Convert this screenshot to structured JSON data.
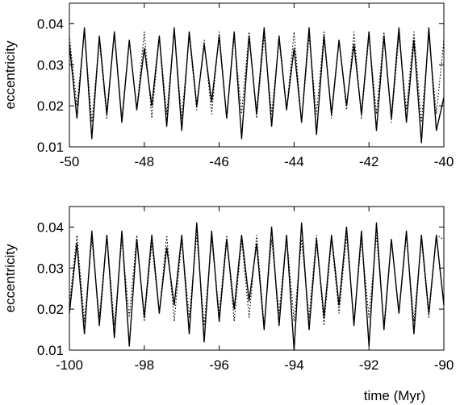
{
  "chart_data": [
    {
      "type": "line",
      "title": "",
      "xlabel": "",
      "ylabel": "eccentricity",
      "xlim": [
        -50,
        -40
      ],
      "ylim": [
        0.01,
        0.045
      ],
      "xticks": [
        "-50",
        "-48",
        "-46",
        "-44",
        "-42",
        "-40"
      ],
      "yticks": [
        "0.01",
        "0.02",
        "0.03",
        "0.04"
      ],
      "grid": false,
      "series": [
        {
          "style": "solid",
          "color": "#000000",
          "x": [
            -50.0,
            -49.8,
            -49.6,
            -49.4,
            -49.2,
            -49.0,
            -48.8,
            -48.6,
            -48.4,
            -48.2,
            -48.0,
            -47.8,
            -47.6,
            -47.4,
            -47.2,
            -47.0,
            -46.8,
            -46.6,
            -46.4,
            -46.2,
            -46.0,
            -45.8,
            -45.6,
            -45.4,
            -45.2,
            -45.0,
            -44.8,
            -44.6,
            -44.4,
            -44.2,
            -44.0,
            -43.8,
            -43.6,
            -43.4,
            -43.2,
            -43.0,
            -42.8,
            -42.6,
            -42.4,
            -42.2,
            -42.0,
            -41.8,
            -41.6,
            -41.4,
            -41.2,
            -41.0,
            -40.8,
            -40.6,
            -40.4,
            -40.2,
            -40.0
          ],
          "y": [
            0.035,
            0.017,
            0.039,
            0.012,
            0.037,
            0.018,
            0.038,
            0.016,
            0.036,
            0.019,
            0.034,
            0.02,
            0.037,
            0.015,
            0.039,
            0.014,
            0.038,
            0.02,
            0.035,
            0.021,
            0.037,
            0.017,
            0.038,
            0.012,
            0.037,
            0.018,
            0.039,
            0.015,
            0.037,
            0.019,
            0.034,
            0.016,
            0.039,
            0.013,
            0.037,
            0.018,
            0.036,
            0.02,
            0.035,
            0.018,
            0.038,
            0.014,
            0.037,
            0.017,
            0.039,
            0.016,
            0.036,
            0.011,
            0.039,
            0.014,
            0.022
          ]
        },
        {
          "style": "dotted",
          "color": "#000000",
          "x": [
            -50.0,
            -49.8,
            -49.6,
            -49.4,
            -49.2,
            -49.0,
            -48.8,
            -48.6,
            -48.4,
            -48.2,
            -48.0,
            -47.8,
            -47.6,
            -47.4,
            -47.2,
            -47.0,
            -46.8,
            -46.6,
            -46.4,
            -46.2,
            -46.0,
            -45.8,
            -45.6,
            -45.4,
            -45.2,
            -45.0,
            -44.8,
            -44.6,
            -44.4,
            -44.2,
            -44.0,
            -43.8,
            -43.6,
            -43.4,
            -43.2,
            -43.0,
            -42.8,
            -42.6,
            -42.4,
            -42.2,
            -42.0,
            -41.8,
            -41.6,
            -41.4,
            -41.2,
            -41.0,
            -40.8,
            -40.6,
            -40.4,
            -40.2,
            -40.0
          ],
          "y": [
            0.037,
            0.02,
            0.038,
            0.016,
            0.036,
            0.017,
            0.038,
            0.017,
            0.036,
            0.019,
            0.038,
            0.017,
            0.037,
            0.018,
            0.038,
            0.017,
            0.037,
            0.019,
            0.036,
            0.018,
            0.038,
            0.017,
            0.037,
            0.018,
            0.038,
            0.017,
            0.037,
            0.018,
            0.036,
            0.019,
            0.038,
            0.016,
            0.037,
            0.018,
            0.038,
            0.017,
            0.036,
            0.019,
            0.038,
            0.017,
            0.037,
            0.018,
            0.038,
            0.016,
            0.037,
            0.019,
            0.038,
            0.016,
            0.037,
            0.018,
            0.036
          ]
        }
      ]
    },
    {
      "type": "line",
      "title": "",
      "xlabel": "time (Myr)",
      "ylabel": "eccentricity",
      "xlim": [
        -100,
        -90
      ],
      "ylim": [
        0.01,
        0.045
      ],
      "xticks": [
        "-100",
        "-98",
        "-96",
        "-94",
        "-92",
        "-90"
      ],
      "yticks": [
        "0.01",
        "0.02",
        "0.03",
        "0.04"
      ],
      "grid": false,
      "series": [
        {
          "style": "solid",
          "color": "#000000",
          "x": [
            -100.0,
            -99.8,
            -99.6,
            -99.4,
            -99.2,
            -99.0,
            -98.8,
            -98.6,
            -98.4,
            -98.2,
            -98.0,
            -97.8,
            -97.6,
            -97.4,
            -97.2,
            -97.0,
            -96.8,
            -96.6,
            -96.4,
            -96.2,
            -96.0,
            -95.8,
            -95.6,
            -95.4,
            -95.2,
            -95.0,
            -94.8,
            -94.6,
            -94.4,
            -94.2,
            -94.0,
            -93.8,
            -93.6,
            -93.4,
            -93.2,
            -93.0,
            -92.8,
            -92.6,
            -92.4,
            -92.2,
            -92.0,
            -91.8,
            -91.6,
            -91.4,
            -91.2,
            -91.0,
            -90.8,
            -90.6,
            -90.4,
            -90.2,
            -90.0
          ],
          "y": [
            0.019,
            0.036,
            0.014,
            0.039,
            0.016,
            0.038,
            0.013,
            0.039,
            0.011,
            0.037,
            0.018,
            0.038,
            0.019,
            0.035,
            0.021,
            0.038,
            0.014,
            0.041,
            0.012,
            0.039,
            0.017,
            0.037,
            0.02,
            0.038,
            0.022,
            0.036,
            0.015,
            0.04,
            0.016,
            0.038,
            0.01,
            0.041,
            0.015,
            0.037,
            0.018,
            0.038,
            0.021,
            0.04,
            0.016,
            0.039,
            0.011,
            0.041,
            0.015,
            0.037,
            0.019,
            0.039,
            0.014,
            0.038,
            0.019,
            0.038,
            0.021
          ]
        },
        {
          "style": "dotted",
          "color": "#000000",
          "x": [
            -100.0,
            -99.8,
            -99.6,
            -99.4,
            -99.2,
            -99.0,
            -98.8,
            -98.6,
            -98.4,
            -98.2,
            -98.0,
            -97.8,
            -97.6,
            -97.4,
            -97.2,
            -97.0,
            -96.8,
            -96.6,
            -96.4,
            -96.2,
            -96.0,
            -95.8,
            -95.6,
            -95.4,
            -95.2,
            -95.0,
            -94.8,
            -94.6,
            -94.4,
            -94.2,
            -94.0,
            -93.8,
            -93.6,
            -93.4,
            -93.2,
            -93.0,
            -92.8,
            -92.6,
            -92.4,
            -92.2,
            -92.0,
            -91.8,
            -91.6,
            -91.4,
            -91.2,
            -91.0,
            -90.8,
            -90.6,
            -90.4,
            -90.2,
            -90.0
          ],
          "y": [
            0.021,
            0.038,
            0.017,
            0.037,
            0.018,
            0.038,
            0.016,
            0.037,
            0.018,
            0.038,
            0.017,
            0.036,
            0.019,
            0.038,
            0.017,
            0.037,
            0.018,
            0.038,
            0.016,
            0.037,
            0.019,
            0.038,
            0.017,
            0.037,
            0.018,
            0.038,
            0.016,
            0.037,
            0.019,
            0.038,
            0.017,
            0.037,
            0.018,
            0.038,
            0.016,
            0.037,
            0.019,
            0.038,
            0.017,
            0.037,
            0.018,
            0.038,
            0.016,
            0.037,
            0.019,
            0.038,
            0.017,
            0.037,
            0.018,
            0.038,
            0.037
          ]
        }
      ]
    }
  ]
}
